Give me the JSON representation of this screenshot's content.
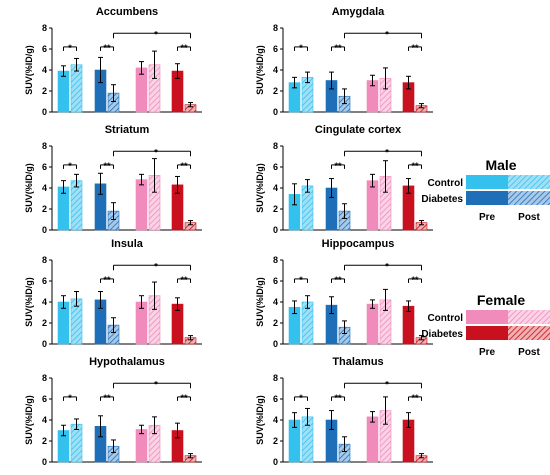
{
  "chart_data": [
    {
      "type": "bar",
      "title": "Accumbens",
      "ylabel": "SUV(%ID/g)",
      "ylim": [
        0,
        8
      ],
      "yticks": [
        "0",
        "2",
        "4",
        "6",
        "8"
      ],
      "bars": [
        {
          "group": "Male Control",
          "time": "Pre",
          "value": 3.9,
          "err": 0.5
        },
        {
          "group": "Male Control",
          "time": "Post",
          "value": 4.5,
          "err": 0.6
        },
        {
          "group": "Male Diabetes",
          "time": "Pre",
          "value": 4.0,
          "err": 1.2
        },
        {
          "group": "Male Diabetes",
          "time": "Post",
          "value": 1.8,
          "err": 0.8
        },
        {
          "group": "Female Control",
          "time": "Pre",
          "value": 4.2,
          "err": 0.6
        },
        {
          "group": "Female Control",
          "time": "Post",
          "value": 4.5,
          "err": 1.3
        },
        {
          "group": "Female Diabetes",
          "time": "Pre",
          "value": 3.9,
          "err": 0.7
        },
        {
          "group": "Female Diabetes",
          "time": "Post",
          "value": 0.7,
          "err": 0.2
        }
      ],
      "annotations": [
        "[*]",
        "[**]",
        "*",
        "[**]"
      ]
    },
    {
      "type": "bar",
      "title": "Amygdala",
      "ylabel": "SUV(%ID/g)",
      "ylim": [
        0,
        8
      ],
      "yticks": [
        "0",
        "2",
        "4",
        "6",
        "8"
      ],
      "bars": [
        {
          "group": "Male Control",
          "time": "Pre",
          "value": 2.8,
          "err": 0.5
        },
        {
          "group": "Male Control",
          "time": "Post",
          "value": 3.3,
          "err": 0.5
        },
        {
          "group": "Male Diabetes",
          "time": "Pre",
          "value": 3.0,
          "err": 0.8
        },
        {
          "group": "Male Diabetes",
          "time": "Post",
          "value": 1.5,
          "err": 0.7
        },
        {
          "group": "Female Control",
          "time": "Pre",
          "value": 3.0,
          "err": 0.5
        },
        {
          "group": "Female Control",
          "time": "Post",
          "value": 3.2,
          "err": 1.0
        },
        {
          "group": "Female Diabetes",
          "time": "Pre",
          "value": 2.8,
          "err": 0.6
        },
        {
          "group": "Female Diabetes",
          "time": "Post",
          "value": 0.6,
          "err": 0.2
        }
      ],
      "annotations": [
        "[*]",
        "[**]",
        "*",
        "[**]"
      ]
    },
    {
      "type": "bar",
      "title": "Striatum",
      "ylabel": "SUV(%ID/g)",
      "ylim": [
        0,
        8
      ],
      "yticks": [
        "0",
        "2",
        "4",
        "6",
        "8"
      ],
      "bars": [
        {
          "group": "Male Control",
          "time": "Pre",
          "value": 4.1,
          "err": 0.6
        },
        {
          "group": "Male Control",
          "time": "Post",
          "value": 4.7,
          "err": 0.6
        },
        {
          "group": "Male Diabetes",
          "time": "Pre",
          "value": 4.4,
          "err": 1.0
        },
        {
          "group": "Male Diabetes",
          "time": "Post",
          "value": 1.8,
          "err": 0.8
        },
        {
          "group": "Female Control",
          "time": "Pre",
          "value": 4.8,
          "err": 0.5
        },
        {
          "group": "Female Control",
          "time": "Post",
          "value": 5.2,
          "err": 1.6
        },
        {
          "group": "Female Diabetes",
          "time": "Pre",
          "value": 4.3,
          "err": 0.8
        },
        {
          "group": "Female Diabetes",
          "time": "Post",
          "value": 0.7,
          "err": 0.2
        }
      ],
      "annotations": [
        "[*]",
        "[**]",
        "*",
        "[**]"
      ]
    },
    {
      "type": "bar",
      "title": "Cingulate cortex",
      "ylabel": "SUV(%ID/g)",
      "ylim": [
        0,
        8
      ],
      "yticks": [
        "0",
        "2",
        "4",
        "6",
        "8"
      ],
      "bars": [
        {
          "group": "Male Control",
          "time": "Pre",
          "value": 3.4,
          "err": 1.0
        },
        {
          "group": "Male Control",
          "time": "Post",
          "value": 4.2,
          "err": 0.6
        },
        {
          "group": "Male Diabetes",
          "time": "Pre",
          "value": 4.0,
          "err": 0.9
        },
        {
          "group": "Male Diabetes",
          "time": "Post",
          "value": 1.8,
          "err": 0.7
        },
        {
          "group": "Female Control",
          "time": "Pre",
          "value": 4.7,
          "err": 0.6
        },
        {
          "group": "Female Control",
          "time": "Post",
          "value": 5.1,
          "err": 1.5
        },
        {
          "group": "Female Diabetes",
          "time": "Pre",
          "value": 4.2,
          "err": 0.7
        },
        {
          "group": "Female Diabetes",
          "time": "Post",
          "value": 0.7,
          "err": 0.2
        }
      ],
      "annotations": [
        "[**]",
        "*",
        "[**]"
      ]
    },
    {
      "type": "bar",
      "title": "Insula",
      "ylabel": "SUV(%ID/g)",
      "ylim": [
        0,
        8
      ],
      "yticks": [
        "0",
        "2",
        "4",
        "6",
        "8"
      ],
      "bars": [
        {
          "group": "Male Control",
          "time": "Pre",
          "value": 4.0,
          "err": 0.6
        },
        {
          "group": "Male Control",
          "time": "Post",
          "value": 4.3,
          "err": 0.7
        },
        {
          "group": "Male Diabetes",
          "time": "Pre",
          "value": 4.2,
          "err": 0.8
        },
        {
          "group": "Male Diabetes",
          "time": "Post",
          "value": 1.8,
          "err": 0.7
        },
        {
          "group": "Female Control",
          "time": "Pre",
          "value": 4.0,
          "err": 0.6
        },
        {
          "group": "Female Control",
          "time": "Post",
          "value": 4.6,
          "err": 1.3
        },
        {
          "group": "Female Diabetes",
          "time": "Pre",
          "value": 3.8,
          "err": 0.6
        },
        {
          "group": "Female Diabetes",
          "time": "Post",
          "value": 0.6,
          "err": 0.2
        }
      ],
      "annotations": [
        "[**]",
        "*",
        "[**]"
      ]
    },
    {
      "type": "bar",
      "title": "Hippocampus",
      "ylabel": "SUV(%ID/g)",
      "ylim": [
        0,
        8
      ],
      "yticks": [
        "0",
        "2",
        "4",
        "6",
        "8"
      ],
      "bars": [
        {
          "group": "Male Control",
          "time": "Pre",
          "value": 3.5,
          "err": 0.6
        },
        {
          "group": "Male Control",
          "time": "Post",
          "value": 4.0,
          "err": 0.6
        },
        {
          "group": "Male Diabetes",
          "time": "Pre",
          "value": 3.7,
          "err": 0.8
        },
        {
          "group": "Male Diabetes",
          "time": "Post",
          "value": 1.6,
          "err": 0.6
        },
        {
          "group": "Female Control",
          "time": "Pre",
          "value": 3.8,
          "err": 0.4
        },
        {
          "group": "Female Control",
          "time": "Post",
          "value": 4.2,
          "err": 1.0
        },
        {
          "group": "Female Diabetes",
          "time": "Pre",
          "value": 3.6,
          "err": 0.5
        },
        {
          "group": "Female Diabetes",
          "time": "Post",
          "value": 0.6,
          "err": 0.2
        }
      ],
      "annotations": [
        "[*]",
        "[**]",
        "*",
        "[**]"
      ]
    },
    {
      "type": "bar",
      "title": "Hypothalamus",
      "ylabel": "SUV(%ID/g)",
      "ylim": [
        0,
        8
      ],
      "yticks": [
        "0",
        "2",
        "4",
        "6",
        "8"
      ],
      "bars": [
        {
          "group": "Male Control",
          "time": "Pre",
          "value": 3.0,
          "err": 0.5
        },
        {
          "group": "Male Control",
          "time": "Post",
          "value": 3.6,
          "err": 0.5
        },
        {
          "group": "Male Diabetes",
          "time": "Pre",
          "value": 3.4,
          "err": 1.0
        },
        {
          "group": "Male Diabetes",
          "time": "Post",
          "value": 1.5,
          "err": 0.6
        },
        {
          "group": "Female Control",
          "time": "Pre",
          "value": 3.1,
          "err": 0.4
        },
        {
          "group": "Female Control",
          "time": "Post",
          "value": 3.5,
          "err": 0.8
        },
        {
          "group": "Female Diabetes",
          "time": "Pre",
          "value": 3.0,
          "err": 0.7
        },
        {
          "group": "Female Diabetes",
          "time": "Post",
          "value": 0.6,
          "err": 0.2
        }
      ],
      "annotations": [
        "[*]",
        "[**]",
        "*",
        "[**]"
      ]
    },
    {
      "type": "bar",
      "title": "Thalamus",
      "ylabel": "SUV(%ID/g)",
      "ylim": [
        0,
        8
      ],
      "yticks": [
        "0",
        "2",
        "4",
        "6",
        "8"
      ],
      "bars": [
        {
          "group": "Male Control",
          "time": "Pre",
          "value": 4.0,
          "err": 0.7
        },
        {
          "group": "Male Control",
          "time": "Post",
          "value": 4.3,
          "err": 0.8
        },
        {
          "group": "Male Diabetes",
          "time": "Pre",
          "value": 4.0,
          "err": 0.9
        },
        {
          "group": "Male Diabetes",
          "time": "Post",
          "value": 1.7,
          "err": 0.7
        },
        {
          "group": "Female Control",
          "time": "Pre",
          "value": 4.3,
          "err": 0.5
        },
        {
          "group": "Female Control",
          "time": "Post",
          "value": 4.9,
          "err": 1.3
        },
        {
          "group": "Female Diabetes",
          "time": "Pre",
          "value": 4.0,
          "err": 0.7
        },
        {
          "group": "Female Diabetes",
          "time": "Post",
          "value": 0.6,
          "err": 0.2
        }
      ],
      "annotations": [
        "[*]",
        "[**]",
        "*",
        "[**]"
      ]
    }
  ],
  "legends": [
    {
      "title": "Male",
      "rows": [
        "Control",
        "Diabetes"
      ],
      "columns": [
        "Pre",
        "Post"
      ],
      "colors": {
        "control": "#35c1ee",
        "diabetes": "#1f6fb8"
      }
    },
    {
      "title": "Female",
      "rows": [
        "Control",
        "Diabetes"
      ],
      "columns": [
        "Pre",
        "Post"
      ],
      "colors": {
        "control": "#f08bbc",
        "diabetes": "#c8101e"
      }
    }
  ]
}
